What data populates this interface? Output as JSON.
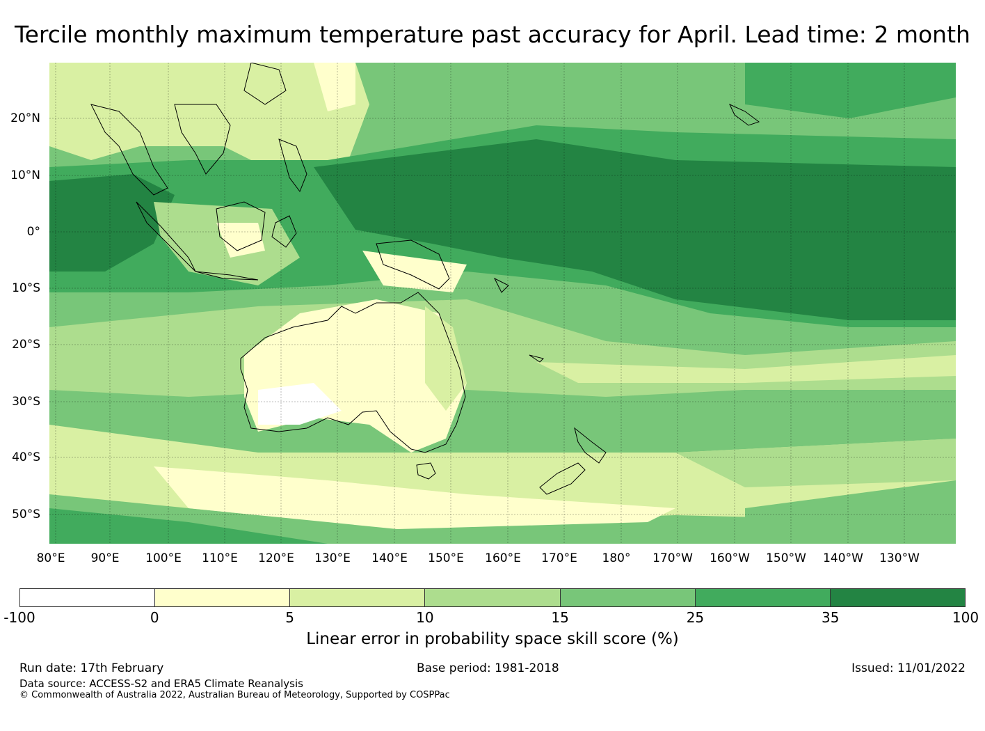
{
  "title": "Tercile monthly maximum temperature past accuracy for April. Lead time: 2 month",
  "map": {
    "lat_labels": [
      "20°N",
      "10°N",
      "0°",
      "10°S",
      "20°S",
      "30°S",
      "40°S",
      "50°S"
    ],
    "lon_labels": [
      "80°E",
      "90°E",
      "100°E",
      "110°E",
      "120°E",
      "130°E",
      "140°E",
      "150°E",
      "160°E",
      "170°E",
      "180°",
      "170°W",
      "160°W",
      "150°W",
      "140°W",
      "130°W"
    ],
    "grid_lines": true,
    "skill_field_description_free": true
  },
  "colorbar": {
    "ticks": [
      "-100",
      "0",
      "5",
      "10",
      "15",
      "25",
      "35",
      "100"
    ],
    "colors": [
      "#ffffff",
      "#ffffcc",
      "#d9f0a3",
      "#addd8e",
      "#78c679",
      "#41ab5d",
      "#238443"
    ],
    "label": "Linear error in probability space skill score (%)"
  },
  "footer": {
    "run_date": "Run date: 17th February",
    "base_period": "Base period: 1981-2018",
    "issued": "Issued: 11/01/2022",
    "data_source": "Data source: ACCESS-S2 and ERA5 Climate Reanalysis",
    "copyright": "© Commonwealth of Australia 2022, Australian Bureau of Meteorology, Supported by COSPPac"
  }
}
